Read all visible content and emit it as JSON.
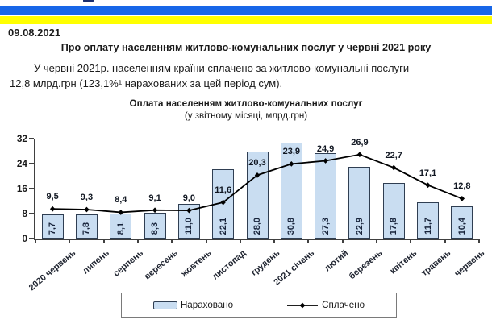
{
  "page": {
    "date": "09.08.2021",
    "title": "Про оплату населенням житлово-комунальних послуг у червні 2021 року",
    "paragraph_line1": "У червні 2021р. населенням країни сплачено за житлово-комунальні послуги",
    "paragraph_line2": "12,8 млрд.грн (123,1%¹ нарахованих за цей період сум).",
    "flag_blue": "#1766e8",
    "flag_yellow": "#ffff00"
  },
  "chart_data": {
    "type": "bar",
    "title": "Оплата населенням житлово-комунальних послуг",
    "subtitle": "(у звітному місяці, млрд.грн)",
    "categories": [
      "2020 червень",
      "липень",
      "серпень",
      "вересень",
      "жовтень",
      "листопад",
      "грудень",
      "2021 січень",
      "лютий",
      "березень",
      "квітень",
      "травень",
      "червень"
    ],
    "series": [
      {
        "name": "Нараховано",
        "type": "bar",
        "fill_color": "#c9ddf1",
        "border_color": "#2f3e52",
        "values": [
          7.7,
          7.8,
          8.1,
          8.3,
          11.0,
          22.1,
          28.0,
          30.8,
          27.3,
          22.9,
          17.8,
          11.7,
          10.4
        ]
      },
      {
        "name": "Сплачено",
        "type": "line",
        "color": "#000000",
        "marker": "diamond",
        "values": [
          9.5,
          9.3,
          8.4,
          9.1,
          9.0,
          11.6,
          20.3,
          23.9,
          24.9,
          26.9,
          22.7,
          17.1,
          12.8
        ]
      }
    ],
    "ylim": [
      0,
      32
    ],
    "yticks": [
      0,
      8,
      16,
      24,
      32
    ],
    "grid": false,
    "value_label_format": "decimal-comma",
    "legend_position": "bottom"
  }
}
